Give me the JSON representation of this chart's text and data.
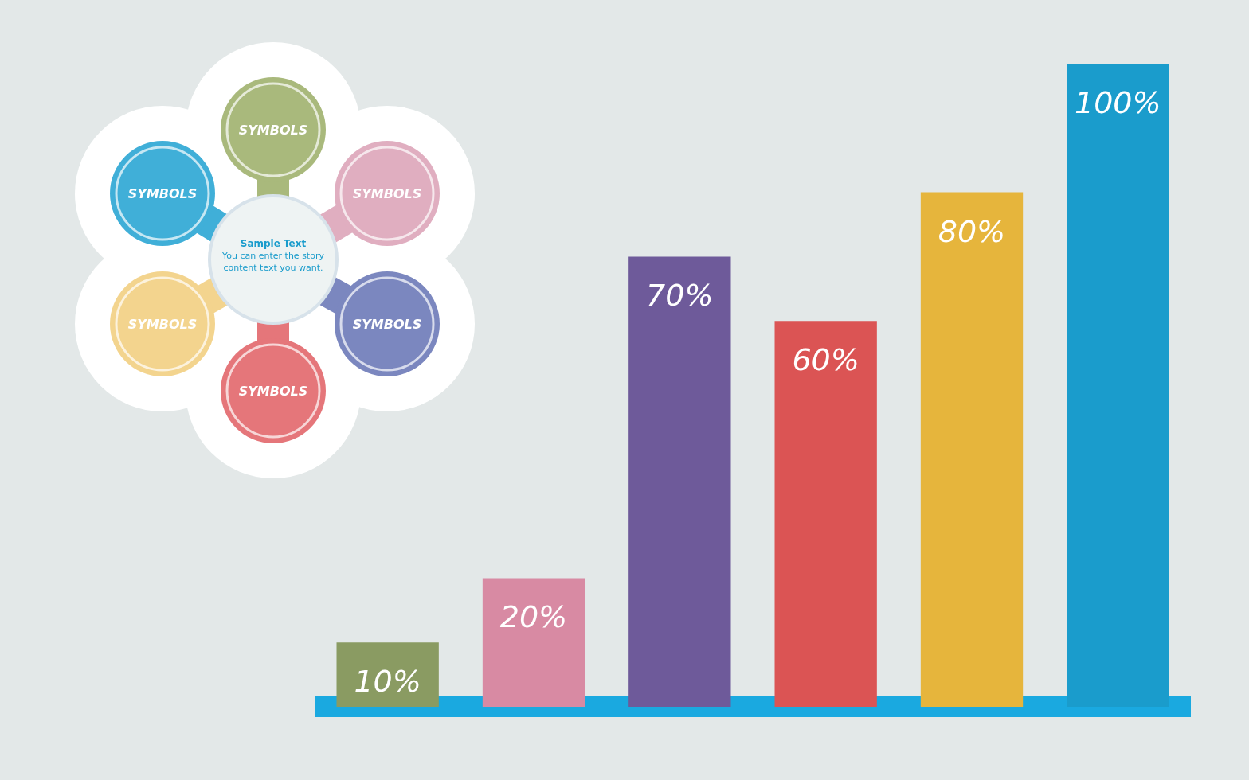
{
  "chart_data": {
    "type": "bar",
    "categories": [
      null,
      null,
      null,
      null,
      null,
      null
    ],
    "values": [
      10,
      20,
      70,
      60,
      80,
      100
    ],
    "value_labels": [
      "10%",
      "20%",
      "70%",
      "60%",
      "80%",
      "100%"
    ],
    "colors": [
      "#8a9b62",
      "#d88aa3",
      "#6e5a9a",
      "#db5454",
      "#e6b53c",
      "#1a9ccc"
    ],
    "grid": false,
    "annotations": [
      "SYMBOLS",
      "SYMBOLS",
      "SYMBOLS",
      "SYMBOLS",
      "SYMBOLS",
      "SYMBOLS",
      "Sample Text",
      "You can enter the story content text you want."
    ]
  }
}
